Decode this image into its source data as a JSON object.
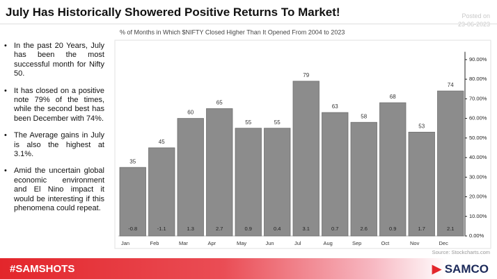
{
  "header": {
    "title": "July Has Historically Showered Positive Returns To Market!",
    "posted_label": "Posted on",
    "posted_date": "23-06-2023"
  },
  "bullets": [
    "In the past 20 Years, July has been the most successful month for Nifty 50.",
    "It has closed on a positive note 79% of the times, while the second best has been December with 74%.",
    "The Average gains in July is also the highest at 3.1%.",
    "Amid the uncertain global economic environment and El Nino impact it would be interesting if this phenomena could repeat."
  ],
  "source": "Source: Stockcharts.com",
  "footer": {
    "hashtag": "#SAMSHOTS",
    "brand": "SAMCO"
  },
  "chart_data": {
    "type": "bar",
    "title": "% of Months in Which $NIFTY Closed Higher Than It Opened From 2004 to 2023",
    "categories": [
      "Jan",
      "Feb",
      "Mar",
      "Apr",
      "May",
      "Jun",
      "Jul",
      "Aug",
      "Sep",
      "Oct",
      "Nov",
      "Dec"
    ],
    "values": [
      35,
      45,
      60,
      65,
      55,
      55,
      79,
      63,
      58,
      68,
      53,
      74
    ],
    "avg_gains": [
      -0.8,
      -1.1,
      1.3,
      2.7,
      0.9,
      0.4,
      3.1,
      0.7,
      2.6,
      0.9,
      1.7,
      2.1
    ],
    "color": "#8c8c8c",
    "ylim": [
      0,
      94
    ],
    "yticks": [
      {
        "value": 0,
        "label": "0.00%"
      },
      {
        "value": 10,
        "label": "10.00%"
      },
      {
        "value": 20,
        "label": "20.00%"
      },
      {
        "value": 30,
        "label": "30.00%"
      },
      {
        "value": 40,
        "label": "40.00%"
      },
      {
        "value": 50,
        "label": "50.00%"
      },
      {
        "value": 60,
        "label": "60.00%"
      },
      {
        "value": 70,
        "label": "70.00%"
      },
      {
        "value": 80,
        "label": "80.00%"
      },
      {
        "value": 90,
        "label": "90.00%"
      }
    ],
    "grid": false,
    "y_axis_side": "right"
  }
}
